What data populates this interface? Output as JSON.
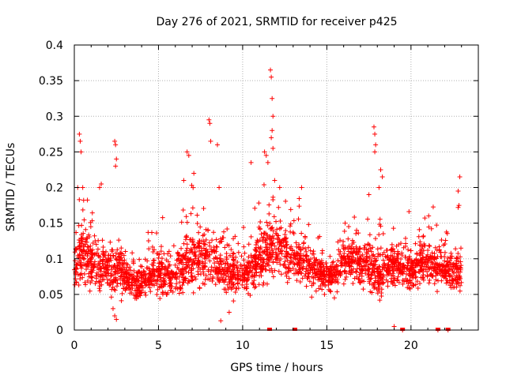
{
  "chart_data": {
    "type": "scatter",
    "title": "Day 276 of 2021, SRMTID for receiver p425",
    "xlabel": "GPS time / hours",
    "ylabel": "SRMTID / TECUs",
    "xlim": [
      0,
      24
    ],
    "ylim": [
      0,
      0.4
    ],
    "xticks": [
      0,
      5,
      10,
      15,
      20
    ],
    "xtick_labels": [
      "0",
      "5",
      "10",
      "15",
      "20"
    ],
    "yticks": [
      0,
      0.05,
      0.1,
      0.15,
      0.2,
      0.25,
      0.3,
      0.35,
      0.4
    ],
    "ytick_labels": [
      "0",
      "0.05",
      "0.1",
      "0.15",
      "0.2",
      "0.25",
      "0.3",
      "0.35",
      "0.4"
    ],
    "grid": true,
    "marker": "+",
    "color": "#ff0000",
    "envelope": {
      "x": [
        0,
        0.2,
        0.4,
        0.8,
        1.0,
        1.5,
        2.0,
        2.3,
        2.6,
        3.0,
        3.5,
        4.0,
        4.5,
        5.0,
        5.5,
        6.0,
        6.5,
        7.0,
        7.5,
        8.0,
        8.5,
        9.0,
        9.5,
        10.0,
        10.5,
        11.0,
        11.5,
        12.0,
        12.5,
        13.0,
        13.5,
        14.0,
        14.5,
        15.0,
        15.5,
        16.0,
        16.5,
        17.0,
        17.5,
        18.0,
        18.5,
        19.0,
        19.5,
        20.0,
        20.5,
        21.0,
        21.5,
        22.0,
        22.5,
        23.0
      ],
      "center": [
        0.085,
        0.1,
        0.11,
        0.1,
        0.095,
        0.09,
        0.085,
        0.075,
        0.09,
        0.075,
        0.065,
        0.065,
        0.075,
        0.08,
        0.075,
        0.08,
        0.09,
        0.1,
        0.1,
        0.1,
        0.095,
        0.085,
        0.08,
        0.075,
        0.085,
        0.1,
        0.11,
        0.12,
        0.11,
        0.1,
        0.095,
        0.09,
        0.08,
        0.075,
        0.085,
        0.095,
        0.1,
        0.095,
        0.09,
        0.08,
        0.085,
        0.09,
        0.085,
        0.085,
        0.09,
        0.095,
        0.09,
        0.085,
        0.08,
        0.085
      ],
      "spread": [
        0.03,
        0.05,
        0.06,
        0.05,
        0.045,
        0.04,
        0.035,
        0.05,
        0.05,
        0.035,
        0.03,
        0.03,
        0.035,
        0.04,
        0.035,
        0.04,
        0.05,
        0.055,
        0.055,
        0.05,
        0.045,
        0.04,
        0.035,
        0.035,
        0.04,
        0.05,
        0.055,
        0.05,
        0.045,
        0.045,
        0.04,
        0.04,
        0.035,
        0.035,
        0.04,
        0.04,
        0.045,
        0.045,
        0.05,
        0.045,
        0.04,
        0.04,
        0.035,
        0.035,
        0.04,
        0.04,
        0.04,
        0.035,
        0.035,
        0.035
      ]
    },
    "sample_count": 2600,
    "outliers": [
      {
        "x": 0.3,
        "y": 0.275
      },
      {
        "x": 0.35,
        "y": 0.265
      },
      {
        "x": 0.4,
        "y": 0.25
      },
      {
        "x": 0.2,
        "y": 0.2
      },
      {
        "x": 0.5,
        "y": 0.2
      },
      {
        "x": 1.5,
        "y": 0.2
      },
      {
        "x": 1.6,
        "y": 0.205
      },
      {
        "x": 2.4,
        "y": 0.265
      },
      {
        "x": 2.45,
        "y": 0.26
      },
      {
        "x": 2.5,
        "y": 0.24
      },
      {
        "x": 2.45,
        "y": 0.23
      },
      {
        "x": 2.4,
        "y": 0.02
      },
      {
        "x": 2.5,
        "y": 0.015
      },
      {
        "x": 2.3,
        "y": 0.03
      },
      {
        "x": 6.7,
        "y": 0.25
      },
      {
        "x": 6.8,
        "y": 0.245
      },
      {
        "x": 6.5,
        "y": 0.21
      },
      {
        "x": 7.1,
        "y": 0.22
      },
      {
        "x": 8.0,
        "y": 0.295
      },
      {
        "x": 8.05,
        "y": 0.29
      },
      {
        "x": 8.1,
        "y": 0.265
      },
      {
        "x": 8.5,
        "y": 0.26
      },
      {
        "x": 8.6,
        "y": 0.2
      },
      {
        "x": 8.7,
        "y": 0.013
      },
      {
        "x": 9.2,
        "y": 0.025
      },
      {
        "x": 11.65,
        "y": 0.365
      },
      {
        "x": 11.7,
        "y": 0.355
      },
      {
        "x": 11.75,
        "y": 0.325
      },
      {
        "x": 11.8,
        "y": 0.3
      },
      {
        "x": 11.75,
        "y": 0.28
      },
      {
        "x": 11.7,
        "y": 0.27
      },
      {
        "x": 11.8,
        "y": 0.255
      },
      {
        "x": 11.3,
        "y": 0.25
      },
      {
        "x": 11.4,
        "y": 0.245
      },
      {
        "x": 11.5,
        "y": 0.235
      },
      {
        "x": 10.5,
        "y": 0.235
      },
      {
        "x": 11.9,
        "y": 0.21
      },
      {
        "x": 12.2,
        "y": 0.2
      },
      {
        "x": 13.5,
        "y": 0.2
      },
      {
        "x": 17.8,
        "y": 0.285
      },
      {
        "x": 17.85,
        "y": 0.275
      },
      {
        "x": 17.9,
        "y": 0.26
      },
      {
        "x": 17.85,
        "y": 0.25
      },
      {
        "x": 18.2,
        "y": 0.225
      },
      {
        "x": 18.3,
        "y": 0.215
      },
      {
        "x": 18.1,
        "y": 0.2
      },
      {
        "x": 17.5,
        "y": 0.19
      },
      {
        "x": 22.9,
        "y": 0.215
      },
      {
        "x": 22.8,
        "y": 0.195
      },
      {
        "x": 22.85,
        "y": 0.175
      },
      {
        "x": 22.8,
        "y": 0.172
      },
      {
        "x": 19.0,
        "y": 0.005
      },
      {
        "x": 19.5,
        "y": 0.0
      },
      {
        "x": 21.6,
        "y": 0.0
      },
      {
        "x": 22.2,
        "y": 0.0
      }
    ],
    "zero_markers": [
      11.6,
      13.1,
      19.5,
      21.6,
      22.2
    ]
  }
}
